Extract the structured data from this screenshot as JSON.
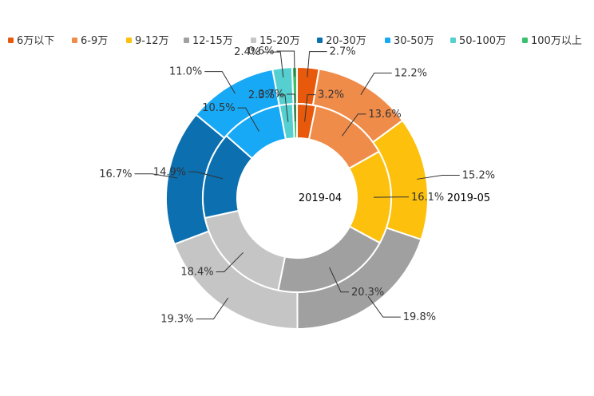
{
  "chart_data": {
    "type": "pie",
    "subtype": "nested-donut",
    "categories": [
      "6万以下",
      "6-9万",
      "9-12万",
      "12-15万",
      "15-20万",
      "20-30万",
      "30-50万",
      "50-100万",
      "100万以上"
    ],
    "colors": [
      "#e8590c",
      "#f08c4a",
      "#fcc00d",
      "#a0a0a0",
      "#c5c5c5",
      "#0b6fb0",
      "#17a9f5",
      "#55cfcf",
      "#3cbf6c"
    ],
    "legend_position": "top",
    "series": [
      {
        "name": "2019-04",
        "ring": "inner",
        "values": [
          3.2,
          13.6,
          16.1,
          20.3,
          18.4,
          14.9,
          10.5,
          2.3,
          0.7
        ],
        "labels": [
          "3.2%",
          "13.6%",
          "16.1%",
          "20.3%",
          "18.4%",
          "14.9%",
          "10.5%",
          "2.3%",
          "0.7%"
        ]
      },
      {
        "name": "2019-05",
        "ring": "outer",
        "values": [
          2.7,
          12.2,
          15.2,
          19.8,
          19.3,
          16.7,
          11.0,
          2.4,
          0.6
        ],
        "labels": [
          "2.7%",
          "12.2%",
          "15.2%",
          "19.8%",
          "19.3%",
          "16.7%",
          "11.0%",
          "2.4%",
          "0.6%"
        ]
      }
    ]
  }
}
